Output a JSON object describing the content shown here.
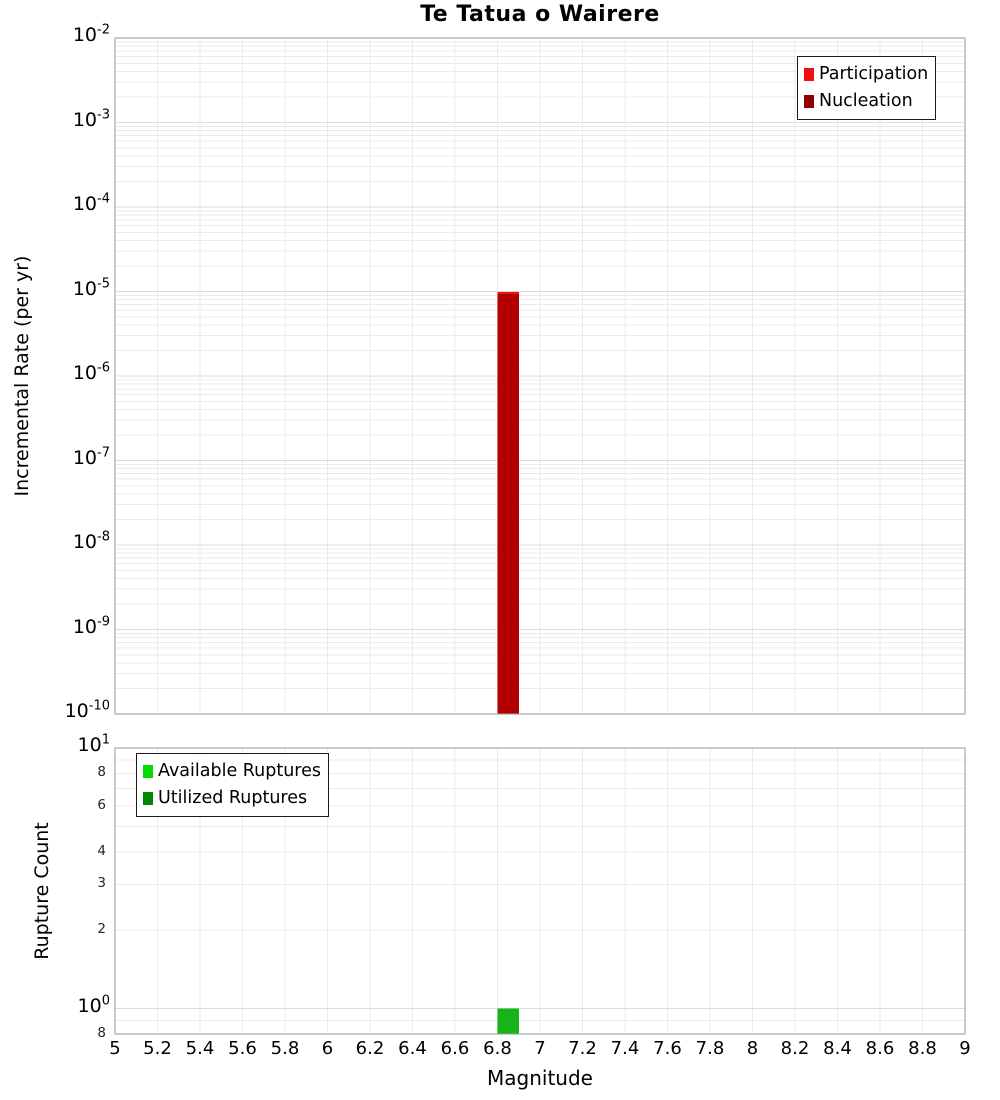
{
  "title": "Te Tatua o Wairere",
  "style": {
    "background": "#ffffff",
    "grid_minor": "#ebebeb",
    "grid_major": "#dcdcdc",
    "axis_border": "#999999",
    "text": "#000000"
  },
  "chart_data": [
    {
      "type": "bar",
      "title": "Te Tatua o Wairere",
      "ylabel": "Incremental Rate (per yr)",
      "yscale": "log",
      "ylim": [
        1e-10,
        0.01
      ],
      "xlim": [
        5,
        9
      ],
      "grid": true,
      "legend_position": "top-right",
      "legend": [
        {
          "id": "participation",
          "label": "Participation",
          "color": "#ee1111"
        },
        {
          "id": "nucleation",
          "label": "Nucleation",
          "color": "#8e0000"
        }
      ],
      "series": [
        {
          "id": "participation",
          "name": "Participation",
          "color": "#ee1111",
          "x": [
            6.85
          ],
          "values": [
            9.8e-06
          ],
          "bar_width": 0.1
        },
        {
          "id": "nucleation",
          "name": "Nucleation",
          "color": "#b20000",
          "x": [
            6.85
          ],
          "values": [
            9.4e-06
          ],
          "bar_width": 0.1
        }
      ],
      "yticks": [
        {
          "v": 0.01,
          "exp": "-2"
        },
        {
          "v": 0.001,
          "exp": "-3"
        },
        {
          "v": 0.0001,
          "exp": "-4"
        },
        {
          "v": 1e-05,
          "exp": "-5"
        },
        {
          "v": 1e-06,
          "exp": "-6"
        },
        {
          "v": 1e-07,
          "exp": "-7"
        },
        {
          "v": 1e-08,
          "exp": "-8"
        },
        {
          "v": 1e-09,
          "exp": "-9"
        },
        {
          "v": 1e-10,
          "exp": "-10"
        }
      ],
      "yticks_minor": []
    },
    {
      "type": "bar",
      "ylabel": "Rupture Count",
      "xlabel": "Magnitude",
      "yscale": "log",
      "ylim": [
        0.8,
        10
      ],
      "xlim": [
        5,
        9
      ],
      "grid": true,
      "legend_position": "top-left",
      "legend": [
        {
          "id": "available-ruptures",
          "label": "Available Ruptures",
          "color": "#00dd00"
        },
        {
          "id": "utilized-ruptures",
          "label": "Utilized Ruptures",
          "color": "#008800"
        }
      ],
      "series": [
        {
          "id": "available-ruptures",
          "name": "Available Ruptures",
          "color": "#00dd00",
          "x": [
            6.85
          ],
          "values": [
            1
          ],
          "bar_width": 0.1
        },
        {
          "id": "utilized-ruptures",
          "name": "Utilized Ruptures",
          "color": "#17b417",
          "x": [
            6.85
          ],
          "values": [
            1
          ],
          "bar_width": 0.1
        }
      ],
      "yticks": [
        {
          "v": 10,
          "exp": "1"
        },
        {
          "v": 1,
          "exp": "0"
        }
      ],
      "yticks_minor": [
        {
          "v": 8,
          "label": "8"
        },
        {
          "v": 6,
          "label": "6"
        },
        {
          "v": 4,
          "label": "4"
        },
        {
          "v": 3,
          "label": "3"
        },
        {
          "v": 2,
          "label": "2"
        },
        {
          "v": 0.8,
          "label": "8"
        }
      ],
      "xticks": [
        {
          "v": 5,
          "label": "5"
        },
        {
          "v": 5.2,
          "label": "5.2"
        },
        {
          "v": 5.4,
          "label": "5.4"
        },
        {
          "v": 5.6,
          "label": "5.6"
        },
        {
          "v": 5.8,
          "label": "5.8"
        },
        {
          "v": 6,
          "label": "6"
        },
        {
          "v": 6.2,
          "label": "6.2"
        },
        {
          "v": 6.4,
          "label": "6.4"
        },
        {
          "v": 6.6,
          "label": "6.6"
        },
        {
          "v": 6.8,
          "label": "6.8"
        },
        {
          "v": 7,
          "label": "7"
        },
        {
          "v": 7.2,
          "label": "7.2"
        },
        {
          "v": 7.4,
          "label": "7.4"
        },
        {
          "v": 7.6,
          "label": "7.6"
        },
        {
          "v": 7.8,
          "label": "7.8"
        },
        {
          "v": 8,
          "label": "8"
        },
        {
          "v": 8.2,
          "label": "8.2"
        },
        {
          "v": 8.4,
          "label": "8.4"
        },
        {
          "v": 8.6,
          "label": "8.6"
        },
        {
          "v": 8.8,
          "label": "8.8"
        },
        {
          "v": 9,
          "label": "9"
        }
      ]
    }
  ]
}
